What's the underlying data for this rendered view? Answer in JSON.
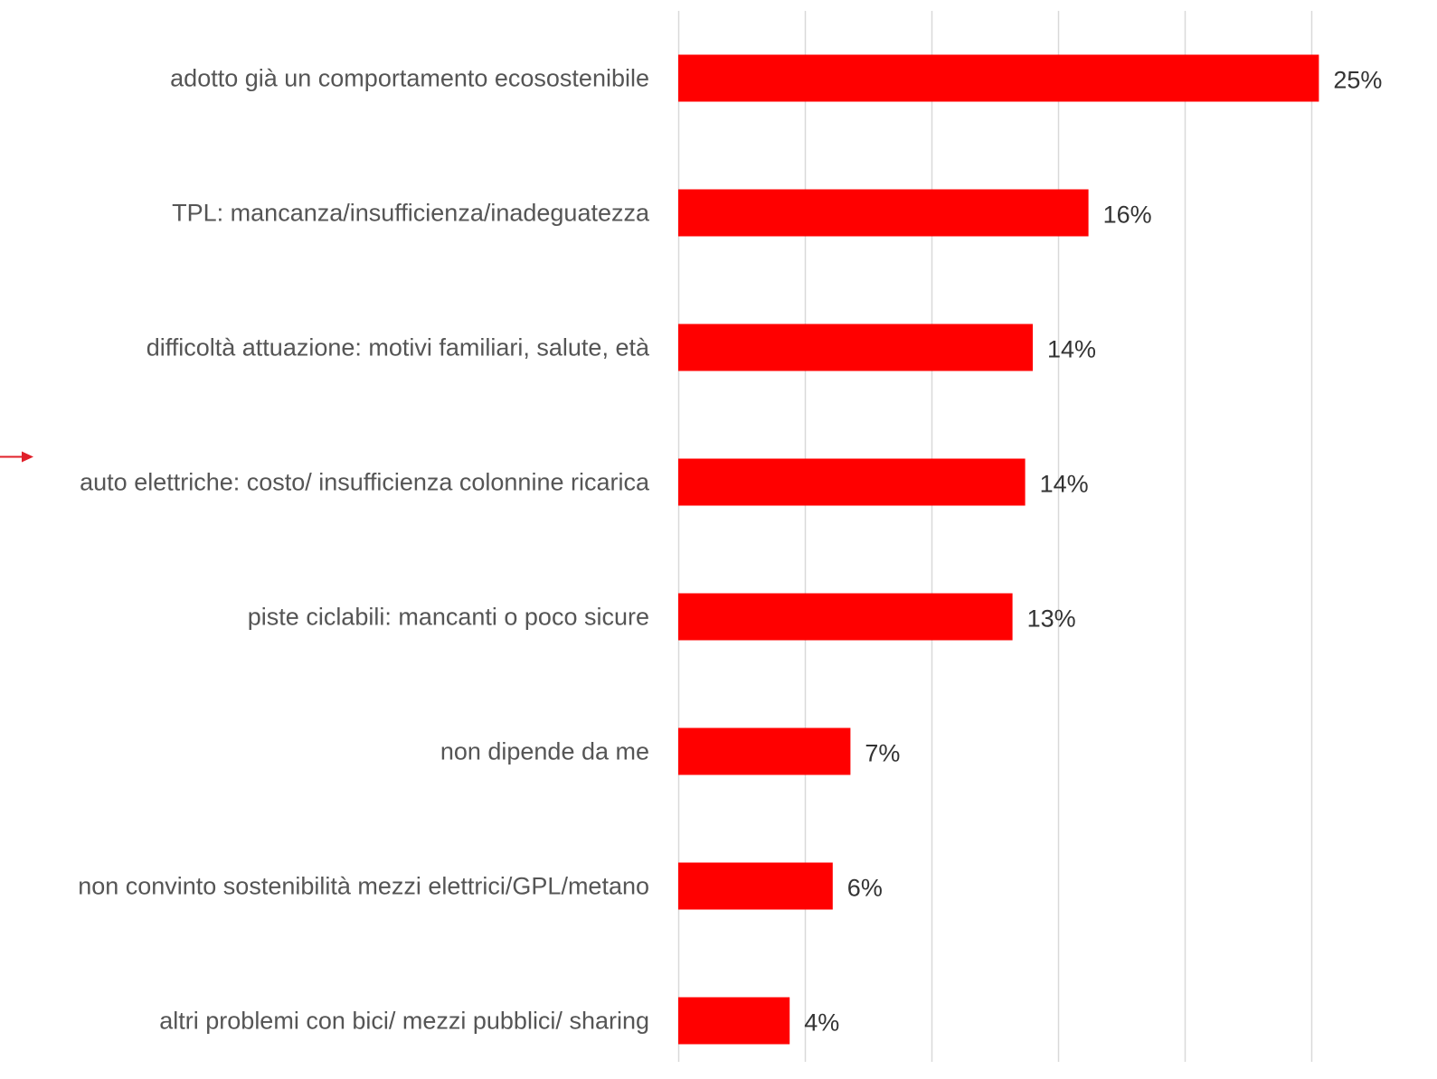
{
  "chart_data": {
    "type": "bar",
    "orientation": "horizontal",
    "categories": [
      "adotto già un comportamento ecosostenibile",
      "TPL: mancanza/insufficienza/inadeguatezza",
      "difficoltà attuazione: motivi familiari, salute, età",
      "auto elettriche: costo/ insufficienza colonnine ricarica",
      "piste ciclabili: mancanti o poco sicure",
      "non dipende da me",
      "non convinto sostenibilità mezzi elettrici/GPL/metano",
      "altri problemi con bici/ mezzi pubblici/ sharing"
    ],
    "values": [
      25.3,
      16.2,
      14.0,
      13.7,
      13.2,
      6.8,
      6.1,
      4.4
    ],
    "data_labels": [
      "25%",
      "16%",
      "14%",
      "14%",
      "13%",
      "7%",
      "6%",
      "4%"
    ],
    "xlim": [
      0,
      25
    ],
    "x_gridlines": [
      0,
      5,
      10,
      15,
      20,
      25
    ],
    "grid": true,
    "xlabel": "",
    "ylabel": "",
    "title": "",
    "legend": "none",
    "bar_color": "#ff0000",
    "grid_color": "#d9d9d9",
    "label_color": "#555555",
    "value_label_color": "#333333",
    "annotation": {
      "type": "arrow",
      "color": "#e0202a",
      "points_to": "auto elettriche: costo/ insufficienza colonnine ricarica"
    }
  }
}
